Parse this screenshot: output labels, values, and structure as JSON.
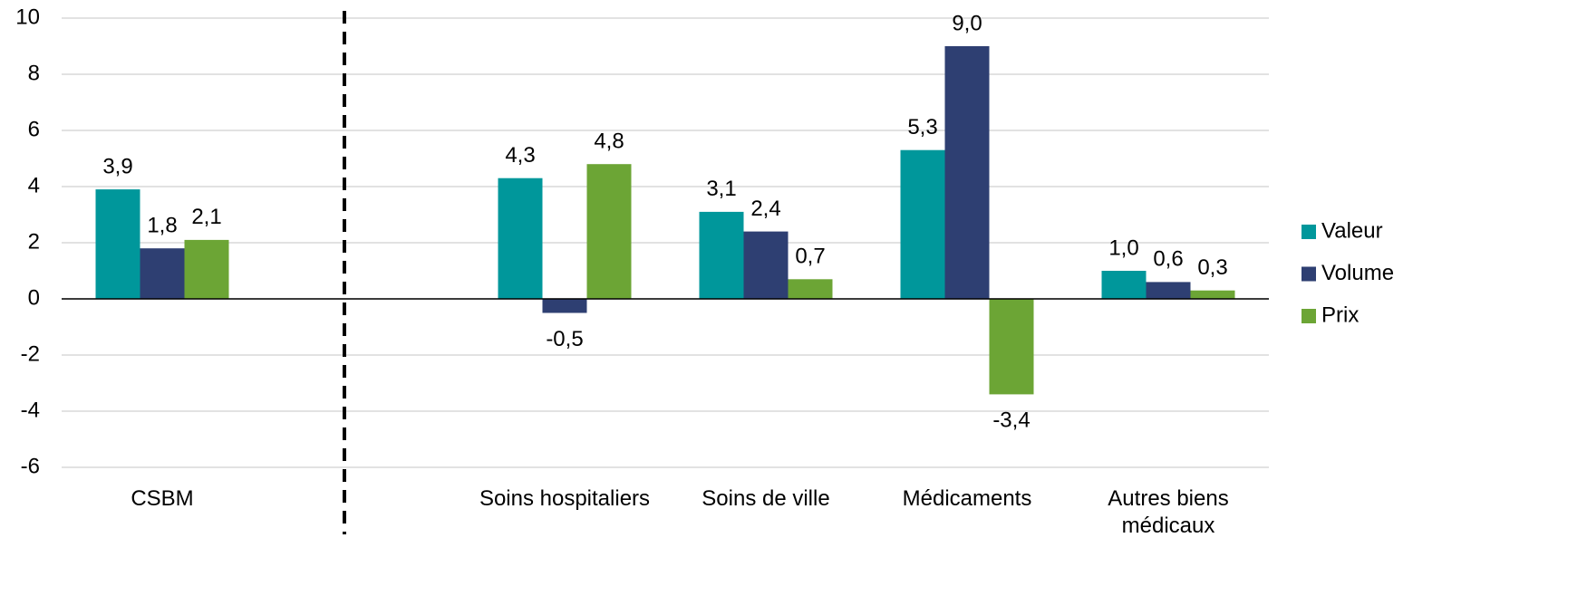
{
  "chart_data": {
    "type": "bar",
    "categories": [
      "CSBM",
      null,
      "Soins hospitaliers",
      "Soins de ville",
      "Médicaments",
      "Autres biens médicaux"
    ],
    "series": [
      {
        "name": "Valeur",
        "color": "#00979b",
        "values": [
          3.9,
          null,
          4.3,
          3.1,
          5.3,
          1.0
        ],
        "value_labels": [
          "3,9",
          null,
          "4,3",
          "3,1",
          "5,3",
          "1,0"
        ]
      },
      {
        "name": "Volume",
        "color": "#2e3f72",
        "values": [
          1.8,
          null,
          -0.5,
          2.4,
          9.0,
          0.6
        ],
        "value_labels": [
          "1,8",
          null,
          "-0,5",
          "2,4",
          "9,0",
          "0,6"
        ]
      },
      {
        "name": "Prix",
        "color": "#6ca535",
        "values": [
          2.1,
          null,
          4.8,
          0.7,
          -3.4,
          0.3
        ],
        "value_labels": [
          "2,1",
          null,
          "4,8",
          "0,7",
          "-3,4",
          "0,3"
        ]
      }
    ],
    "ylim": [
      -6,
      10
    ],
    "yticks": [
      -6,
      -4,
      -2,
      0,
      2,
      4,
      6,
      8,
      10
    ],
    "grid": true,
    "legend": "right"
  }
}
